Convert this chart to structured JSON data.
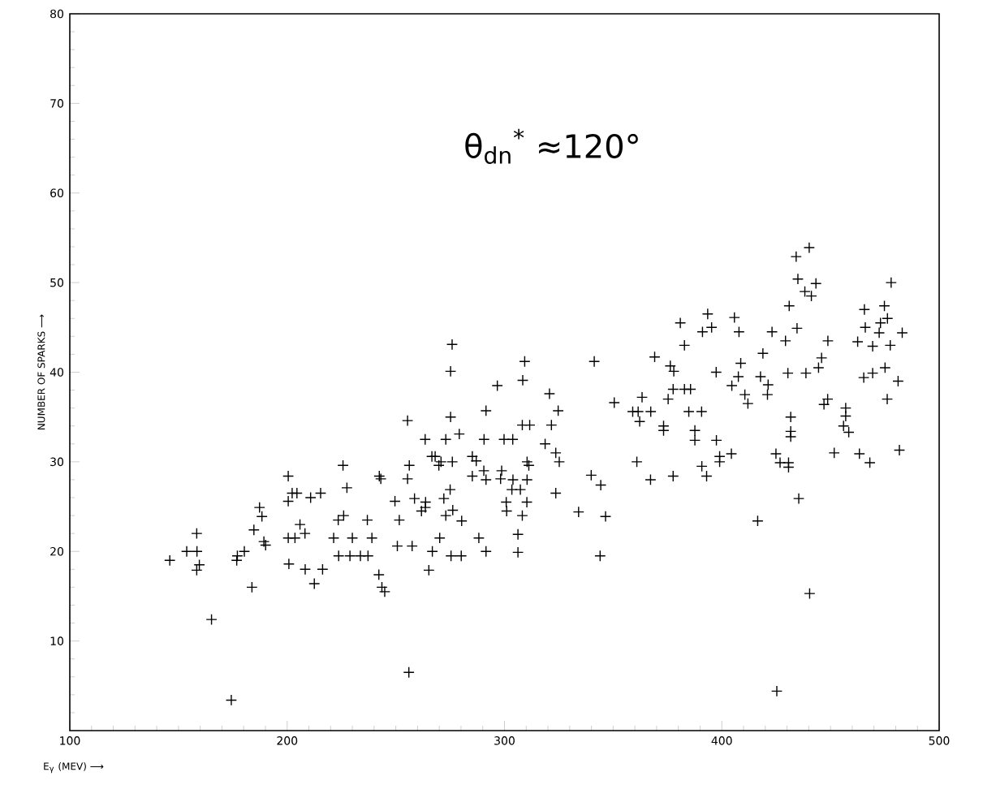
{
  "chart_data": {
    "type": "scatter",
    "xlabel": "E$_{γ}$ (MEV) ⟶",
    "ylabel": "NUMBER OF SPARKS ⟶",
    "annotations": [
      "θ$_{dn}$$^{*}$ ≈120°"
    ],
    "marker": "cross",
    "color": "#000000",
    "xlim": [
      100,
      500
    ],
    "ylim": [
      0,
      80
    ],
    "xticks": [
      100,
      200,
      300,
      400,
      500
    ],
    "yticks": [
      {
        "value": 0,
        "label": null
      },
      10,
      20,
      30,
      40,
      50,
      60,
      70,
      80
    ],
    "x": [
      146,
      153.8,
      158.5,
      158.4,
      159.6,
      158.4,
      165.2,
      174.3,
      177.1,
      176.8,
      180.3,
      183.8,
      184.7,
      187.3,
      188.4,
      189.3,
      190.1,
      200.5,
      202.3,
      204.5,
      200.5,
      210.8,
      215.4,
      205.9,
      208.2,
      200.5,
      203.6,
      200.8,
      208.3,
      216.3,
      212.5,
      225.7,
      227.5,
      223.5,
      226,
      221.4,
      230,
      236.9,
      239,
      223.7,
      228.9,
      233.7,
      237.2,
      242.2,
      243.6,
      244.9,
      242.4,
      243.1,
      255.4,
      256.2,
      255.4,
      249.6,
      251.6,
      250.7,
      257.5,
      256,
      275.9,
      275.2,
      275.2,
      263.5,
      273,
      279.2,
      266.6,
      268.1,
      270.8,
      276,
      269.8,
      275,
      272.1,
      263.7,
      263.6,
      261.8,
      258.6,
      273,
      276.2,
      280.3,
      270.2,
      266.8,
      275.4,
      280.1,
      265.2,
      288.2,
      291.5,
      306.2,
      306.2,
      309.3,
      308.4,
      296.7,
      291.5,
      290.6,
      299.8,
      303.8,
      308.2,
      311.6,
      285.2,
      287,
      285.2,
      290.5,
      291.5,
      298.7,
      298.2,
      303.9,
      310.4,
      303.4,
      307.3,
      310.4,
      311.2,
      300.8,
      301,
      310.3,
      308.2,
      320.7,
      324.7,
      321.6,
      318.7,
      323.6,
      325.2,
      323.6,
      341.3,
      350.5,
      339.9,
      344.3,
      334.1,
      346.5,
      344,
      360.9,
      367.2,
      377.6,
      359,
      361.5,
      362.2,
      367.3,
      363.3,
      369.1,
      373.2,
      373.2,
      375.3,
      377.6,
      376.3,
      377.9,
      380.9,
      382.8,
      382.8,
      385.6,
      384.8,
      390.7,
      387.6,
      387.6,
      390.8,
      393,
      397.5,
      399,
      399,
      397.4,
      391.1,
      395.3,
      393.5,
      440.2,
      434.2,
      435,
      443.3,
      438.2,
      441.2,
      431,
      405.8,
      407.9,
      423.1,
      434.6,
      429.3,
      448.8,
      418.9,
      408.7,
      407.6,
      404.6,
      417.8,
      421.3,
      421,
      410.6,
      412,
      430.4,
      438.7,
      445.9,
      444.5,
      462.5,
      465.6,
      466,
      469.4,
      465.3,
      469.4,
      448.7,
      447,
      431.7,
      431.7,
      431.7,
      457,
      457,
      456,
      458.4,
      404.4,
      424.9,
      426.8,
      430.7,
      430.7,
      451.7,
      463.3,
      468.1,
      435.4,
      416.5,
      440.4,
      425.3,
      477.9,
      474.8,
      476.2,
      473,
      472.4,
      483,
      477.5,
      475.1,
      481.1,
      476.1,
      481.7
    ],
    "values": [
      19,
      20,
      20,
      22,
      18.5,
      17.9,
      12.4,
      3.4,
      19.5,
      19,
      20,
      16,
      22.4,
      24.9,
      23.9,
      21.1,
      20.7,
      28.4,
      26.5,
      26.5,
      25.6,
      26,
      26.5,
      23,
      22,
      21.5,
      21.5,
      18.6,
      18,
      18,
      16.4,
      29.6,
      27.1,
      23.5,
      24,
      21.5,
      21.5,
      23.5,
      21.5,
      19.5,
      19.5,
      19.5,
      19.5,
      17.4,
      16,
      15.5,
      28.4,
      28.1,
      34.6,
      29.6,
      28.1,
      25.6,
      23.5,
      20.6,
      20.6,
      6.5,
      43.1,
      40.1,
      35,
      32.5,
      32.5,
      33.1,
      30.6,
      30.6,
      30,
      30,
      29.6,
      26.9,
      25.9,
      25.5,
      24.9,
      24.5,
      25.9,
      24,
      24.6,
      23.4,
      21.5,
      20,
      19.5,
      19.5,
      17.9,
      21.5,
      20,
      21.9,
      19.9,
      41.2,
      39.1,
      38.5,
      35.7,
      32.5,
      32.5,
      32.5,
      34.1,
      34.1,
      30.6,
      30.1,
      28.4,
      29,
      28,
      29,
      28.1,
      28,
      28,
      26.9,
      26.9,
      30,
      29.6,
      25.5,
      24.5,
      25.5,
      24,
      37.6,
      35.7,
      34.1,
      32,
      31,
      30,
      26.5,
      41.2,
      36.6,
      28.5,
      27.4,
      24.4,
      23.9,
      19.5,
      30,
      28,
      28.4,
      35.6,
      35.6,
      34.5,
      35.6,
      37.2,
      41.7,
      34,
      33.5,
      37,
      38.1,
      40.7,
      40.1,
      45.5,
      43,
      38.1,
      38.1,
      35.6,
      35.6,
      33.5,
      32.4,
      29.5,
      28.4,
      32.4,
      30.6,
      30,
      40,
      44.5,
      45,
      46.5,
      53.9,
      52.9,
      50.4,
      49.9,
      49,
      48.5,
      47.4,
      46.1,
      44.5,
      44.5,
      44.9,
      43.5,
      43.5,
      42.1,
      41,
      39.5,
      38.5,
      39.5,
      38.6,
      37.5,
      37.5,
      36.5,
      39.9,
      39.9,
      41.6,
      40.5,
      43.4,
      47,
      45,
      42.9,
      39.4,
      39.9,
      37,
      36.4,
      35,
      33.4,
      32.8,
      36,
      35.1,
      34,
      33.3,
      30.9,
      30.9,
      29.9,
      29.9,
      29.4,
      31,
      30.9,
      29.9,
      25.9,
      23.4,
      15.3,
      4.4,
      50,
      47.4,
      46,
      45.5,
      44.4,
      44.4,
      43,
      40.5,
      39,
      37,
      31.3
    ]
  }
}
